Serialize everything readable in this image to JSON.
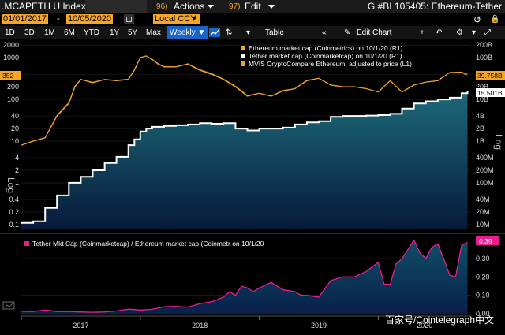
{
  "header": {
    "ticker": ".MCAPETH U Index",
    "actions_num": "96)",
    "actions_label": "Actions",
    "edit_num": "97)",
    "edit_label": "Edit",
    "title": "G #BI 105405: Ethereum-Tether"
  },
  "dates": {
    "start": "01/01/2017",
    "end": "10/05/2020",
    "currency": "Local CCY"
  },
  "toolbar": {
    "ranges": [
      "1D",
      "3D",
      "1M",
      "6M",
      "YTD",
      "1Y",
      "5Y",
      "Max"
    ],
    "frequency": "Weekly",
    "table_label": "Table",
    "edit_chart_label": "Edit Chart"
  },
  "chart_data": [
    {
      "type": "line",
      "series": [
        {
          "name": "Ethereum market cap (Coinmetrics) on 10/1/20 (R1)",
          "color": "#f5a623",
          "x": [
            2017.0,
            2017.1,
            2017.2,
            2017.3,
            2017.4,
            2017.45,
            2017.5,
            2017.6,
            2017.7,
            2017.8,
            2017.9,
            2017.95,
            2018.0,
            2018.05,
            2018.1,
            2018.15,
            2018.2,
            2018.3,
            2018.4,
            2018.5,
            2018.6,
            2018.7,
            2018.8,
            2018.9,
            2019.0,
            2019.1,
            2019.2,
            2019.3,
            2019.4,
            2019.5,
            2019.6,
            2019.7,
            2019.8,
            2019.9,
            2020.0,
            2020.1,
            2020.2,
            2020.3,
            2020.4,
            2020.5,
            2020.6,
            2020.7,
            2020.75
          ],
          "values": [
            0.8,
            1.0,
            1.2,
            4.0,
            8.0,
            20.0,
            30.0,
            25.0,
            30.0,
            28.0,
            30.0,
            50.0,
            100.0,
            110.0,
            90.0,
            70.0,
            60.0,
            60.0,
            70.0,
            50.0,
            40.0,
            30.0,
            20.0,
            12.0,
            14.0,
            12.0,
            16.0,
            18.0,
            28.0,
            32.0,
            22.0,
            20.0,
            20.0,
            18.0,
            15.0,
            28.0,
            15.0,
            22.0,
            26.0,
            28.0,
            44.0,
            45.0,
            39.758
          ]
        },
        {
          "name": "Tether market cap (Coinmarketcap) on 10/1/20 (R1)",
          "color": "#ffffff",
          "x": [
            2017.0,
            2017.1,
            2017.2,
            2017.3,
            2017.4,
            2017.5,
            2017.6,
            2017.7,
            2017.8,
            2017.9,
            2017.95,
            2018.0,
            2018.05,
            2018.1,
            2018.2,
            2018.3,
            2018.4,
            2018.5,
            2018.6,
            2018.7,
            2018.8,
            2018.9,
            2019.0,
            2019.1,
            2019.2,
            2019.3,
            2019.4,
            2019.5,
            2019.6,
            2019.7,
            2019.8,
            2019.9,
            2020.0,
            2020.1,
            2020.2,
            2020.3,
            2020.4,
            2020.5,
            2020.6,
            2020.7,
            2020.75
          ],
          "values": [
            0.011,
            0.012,
            0.025,
            0.05,
            0.1,
            0.14,
            0.2,
            0.3,
            0.42,
            0.8,
            1.1,
            1.7,
            2.0,
            2.2,
            2.3,
            2.4,
            2.5,
            2.7,
            2.6,
            2.7,
            2.0,
            1.8,
            2.0,
            2.0,
            2.1,
            2.5,
            2.8,
            3.0,
            3.8,
            4.0,
            4.0,
            4.1,
            4.2,
            4.5,
            6.0,
            8.0,
            9.0,
            10.0,
            11.0,
            14.0,
            15.501
          ]
        },
        {
          "name": "MVIS CryptoCompare Ethereum, adjusted to price (L1)",
          "color": "#e8a03a",
          "x": [
            2017.0,
            2017.1,
            2017.2,
            2017.3,
            2017.4,
            2017.45,
            2017.5,
            2017.6,
            2017.7,
            2017.8,
            2017.9,
            2017.95,
            2018.0,
            2018.05,
            2018.1,
            2018.15,
            2018.2,
            2018.3,
            2018.4,
            2018.5,
            2018.6,
            2018.7,
            2018.8,
            2018.9,
            2019.0,
            2019.1,
            2019.2,
            2019.3,
            2019.4,
            2019.5,
            2019.6,
            2019.7,
            2019.8,
            2019.9,
            2020.0,
            2020.1,
            2020.2,
            2020.3,
            2020.4,
            2020.5,
            2020.6,
            2020.7,
            2020.75
          ],
          "values": [
            8,
            10,
            12,
            42,
            85,
            210,
            300,
            260,
            300,
            290,
            310,
            520,
            1000,
            1100,
            920,
            720,
            620,
            610,
            720,
            520,
            420,
            310,
            210,
            125,
            140,
            120,
            165,
            180,
            290,
            320,
            220,
            205,
            200,
            180,
            150,
            280,
            150,
            220,
            260,
            280,
            440,
            450,
            352
          ]
        }
      ],
      "left_axis": {
        "scale": "log",
        "label": "Log",
        "ticks": [
          "2000",
          "1000",
          "400",
          "200",
          "100",
          "40",
          "20",
          "10",
          "4",
          "2",
          "1",
          "0.4",
          "0.2",
          "0.1"
        ],
        "last_value": "352"
      },
      "right_axis": {
        "scale": "log",
        "label": "Log",
        "ticks": [
          "200B",
          "100B",
          "40B",
          "20B",
          "10B",
          "4B",
          "2B",
          "1B",
          "400M",
          "200M",
          "100M",
          "40M",
          "20M",
          "10M"
        ],
        "last_values": [
          "39.758B",
          "15.501B"
        ]
      },
      "legend_position": "top-right"
    },
    {
      "type": "area",
      "series": [
        {
          "name": "Tether Mkt Cap (Coinmarketcap) / Ethereum market cap (Coinmetr on 10/1/20",
          "color": "#e91e8c",
          "x": [
            2017.0,
            2017.1,
            2017.2,
            2017.3,
            2017.4,
            2017.5,
            2017.6,
            2017.7,
            2017.8,
            2017.9,
            2018.0,
            2018.1,
            2018.2,
            2018.3,
            2018.4,
            2018.5,
            2018.6,
            2018.7,
            2018.75,
            2018.8,
            2018.85,
            2018.9,
            2018.95,
            2019.0,
            2019.1,
            2019.2,
            2019.3,
            2019.35,
            2019.4,
            2019.5,
            2019.6,
            2019.7,
            2019.8,
            2019.9,
            2020.0,
            2020.05,
            2020.1,
            2020.15,
            2020.2,
            2020.25,
            2020.3,
            2020.35,
            2020.4,
            2020.45,
            2020.5,
            2020.55,
            2020.6,
            2020.65,
            2020.7,
            2020.75
          ],
          "values": [
            0.013,
            0.012,
            0.02,
            0.012,
            0.012,
            0.01,
            0.008,
            0.01,
            0.015,
            0.025,
            0.02,
            0.024,
            0.038,
            0.04,
            0.036,
            0.055,
            0.065,
            0.09,
            0.12,
            0.1,
            0.15,
            0.14,
            0.12,
            0.14,
            0.17,
            0.13,
            0.12,
            0.1,
            0.1,
            0.09,
            0.18,
            0.2,
            0.2,
            0.23,
            0.28,
            0.16,
            0.16,
            0.27,
            0.3,
            0.35,
            0.4,
            0.33,
            0.3,
            0.36,
            0.38,
            0.3,
            0.21,
            0.2,
            0.37,
            0.39
          ]
        }
      ],
      "right_axis": {
        "ticks": [
          "0.30",
          "0.20",
          "0.10",
          "0.00"
        ],
        "last_value": "0.39"
      }
    }
  ],
  "x_axis": {
    "labels": [
      "2017",
      "2018",
      "2019",
      "2020"
    ]
  },
  "watermark": "百家号/Cointelegraph中文"
}
